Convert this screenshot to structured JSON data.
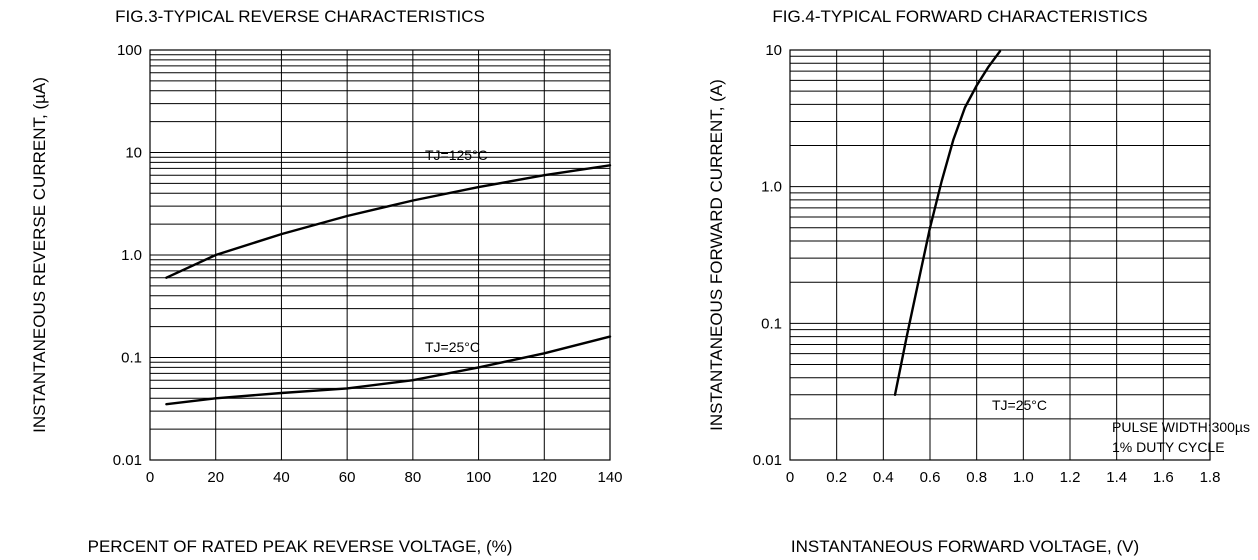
{
  "chart_data": [
    {
      "type": "line",
      "title": "FIG.3-TYPICAL REVERSE CHARACTERISTICS",
      "xlabel": "PERCENT OF RATED PEAK REVERSE VOLTAGE, (%)",
      "ylabel": "INSTANTANEOUS REVERSE CURRENT, (µA)",
      "x_ticks": [
        0,
        20,
        40,
        60,
        80,
        100,
        120,
        140
      ],
      "y_tick_labels": [
        "100",
        "10",
        "1.0",
        "0.1",
        "0.01"
      ],
      "xlim": [
        0,
        140
      ],
      "ylim": [
        0.01,
        100
      ],
      "y_scale": "log",
      "grid": true,
      "annotations": [
        "TJ=125°C",
        "TJ=25°C"
      ],
      "series": [
        {
          "x": [
            5,
            20,
            40,
            60,
            80,
            100,
            120,
            140
          ],
          "y": [
            0.6,
            1.0,
            1.6,
            2.4,
            3.4,
            4.6,
            6.0,
            7.5
          ]
        },
        {
          "x": [
            5,
            20,
            40,
            60,
            80,
            100,
            120,
            140
          ],
          "y": [
            0.035,
            0.04,
            0.045,
            0.05,
            0.06,
            0.08,
            0.11,
            0.16
          ]
        }
      ]
    },
    {
      "type": "line",
      "title": "FIG.4-TYPICAL FORWARD CHARACTERISTICS",
      "xlabel": "INSTANTANEOUS FORWARD VOLTAGE, (V)",
      "ylabel": "INSTANTANEOUS FORWARD CURRENT, (A)",
      "x_ticks": [
        0,
        0.2,
        0.4,
        0.6,
        0.8,
        1.0,
        1.2,
        1.4,
        1.6,
        1.8
      ],
      "y_tick_labels": [
        "10",
        "1.0",
        "0.1",
        "0.01"
      ],
      "xlim": [
        0,
        1.8
      ],
      "ylim": [
        0.01,
        10
      ],
      "y_scale": "log",
      "grid": true,
      "annotations": [
        "TJ=25°C",
        "PULSE WIDTH:300µs",
        "1% DUTY CYCLE"
      ],
      "series": [
        {
          "x": [
            0.45,
            0.5,
            0.55,
            0.6,
            0.65,
            0.7,
            0.75,
            0.8,
            0.85,
            0.9
          ],
          "y": [
            0.03,
            0.08,
            0.2,
            0.5,
            1.1,
            2.2,
            3.8,
            5.5,
            7.5,
            9.8
          ]
        }
      ]
    }
  ]
}
